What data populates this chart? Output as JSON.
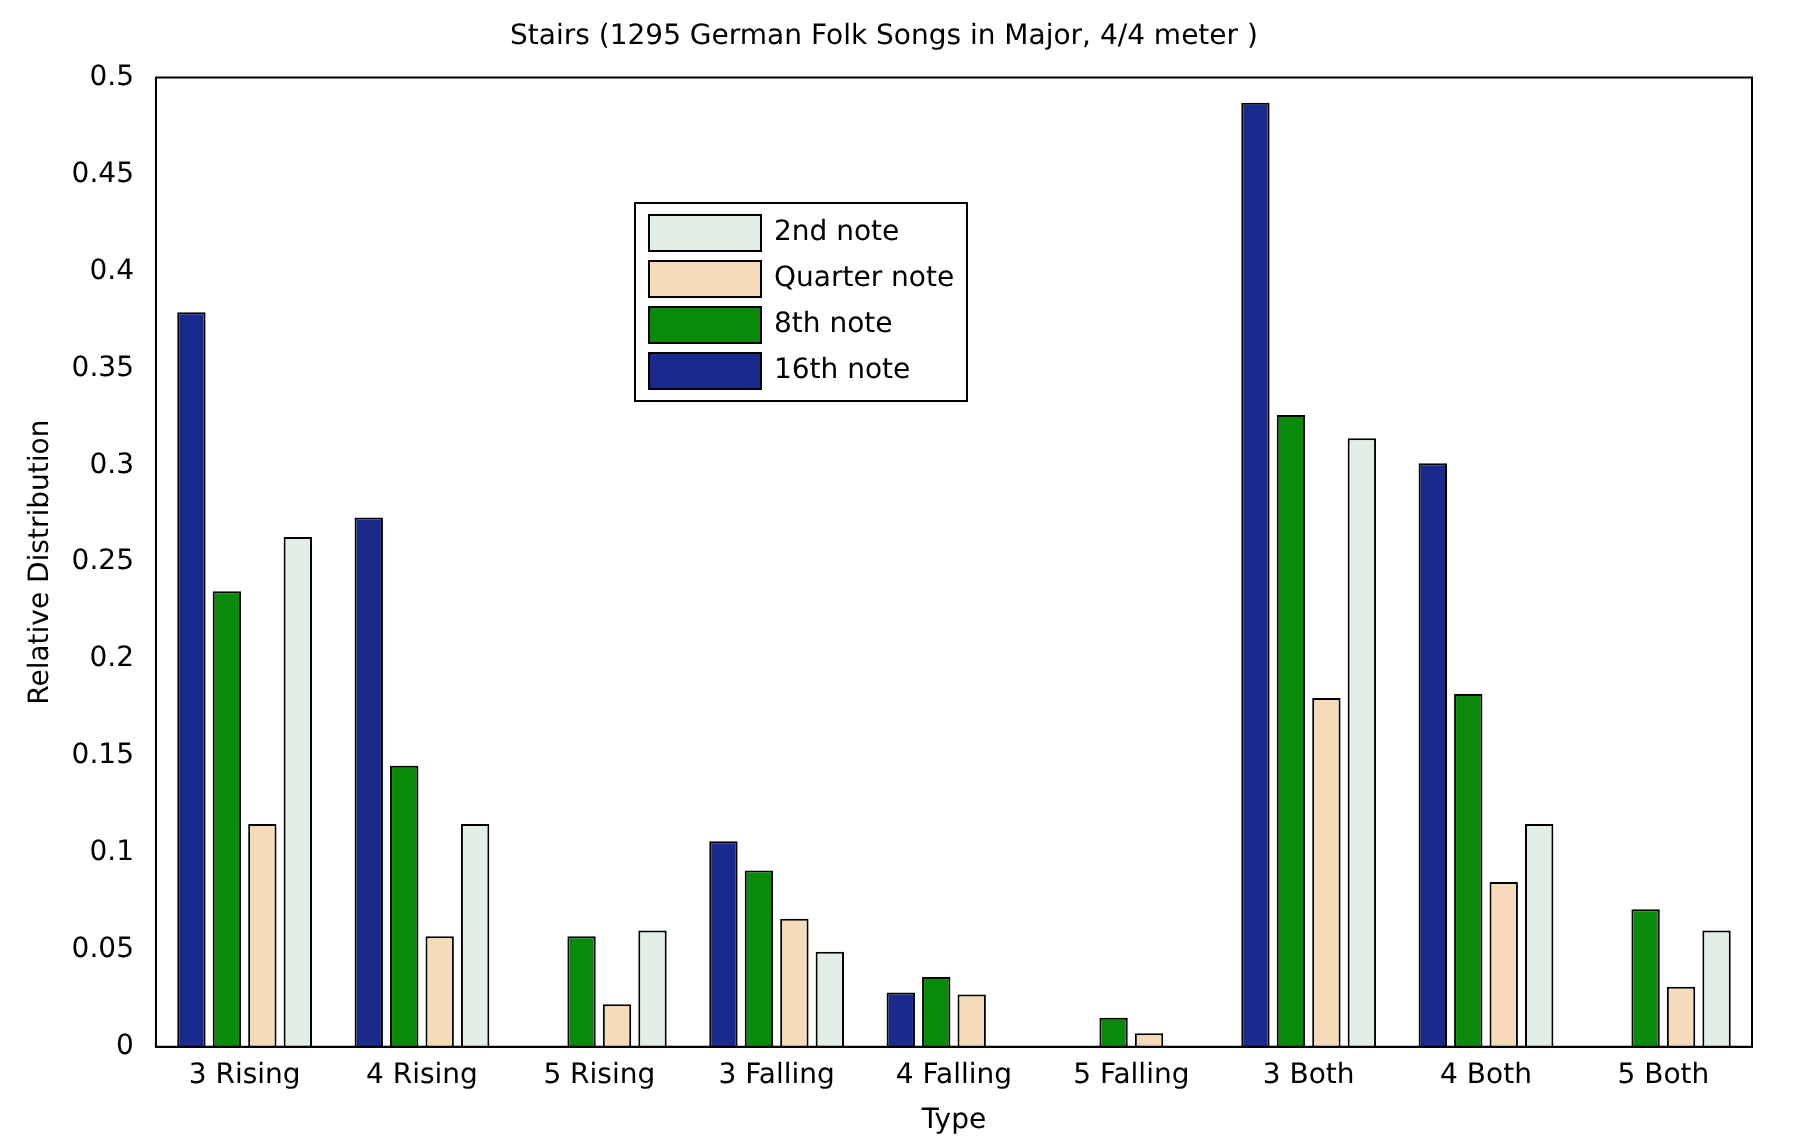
{
  "chart_data": {
    "type": "bar",
    "title": "Stairs (1295 German Folk Songs in Major, 4/4 meter )",
    "xlabel": "Type",
    "ylabel": "Relative Distribution",
    "categories": [
      "3 Rising",
      "4 Rising",
      "5 Rising",
      "3 Falling",
      "4 Falling",
      "5 Falling",
      "3 Both",
      "4 Both",
      "5 Both"
    ],
    "series": [
      {
        "name": "16th note",
        "color": "#1a2a8c",
        "values": [
          0.379,
          0.273,
          0,
          0.106,
          0.028,
          0,
          0.487,
          0.301,
          0
        ]
      },
      {
        "name": "8th note",
        "color": "#0a8a0a",
        "values": [
          0.235,
          0.145,
          0.057,
          0.091,
          0.036,
          0.015,
          0.326,
          0.182,
          0.071
        ]
      },
      {
        "name": "Quarter note",
        "color": "#f5dbb7",
        "values": [
          0.115,
          0.057,
          0.022,
          0.066,
          0.027,
          0.007,
          0.18,
          0.085,
          0.031
        ]
      },
      {
        "name": "2nd note",
        "color": "#e3efe6",
        "values": [
          0.263,
          0.115,
          0.06,
          0.049,
          0,
          0,
          0.314,
          0.115,
          0.06
        ]
      }
    ],
    "ylim": [
      0,
      0.5
    ],
    "yticks": [
      0,
      0.05,
      0.1,
      0.15,
      0.2,
      0.25,
      0.3,
      0.35,
      0.4,
      0.45,
      0.5
    ],
    "grid": false,
    "legend": "top"
  }
}
